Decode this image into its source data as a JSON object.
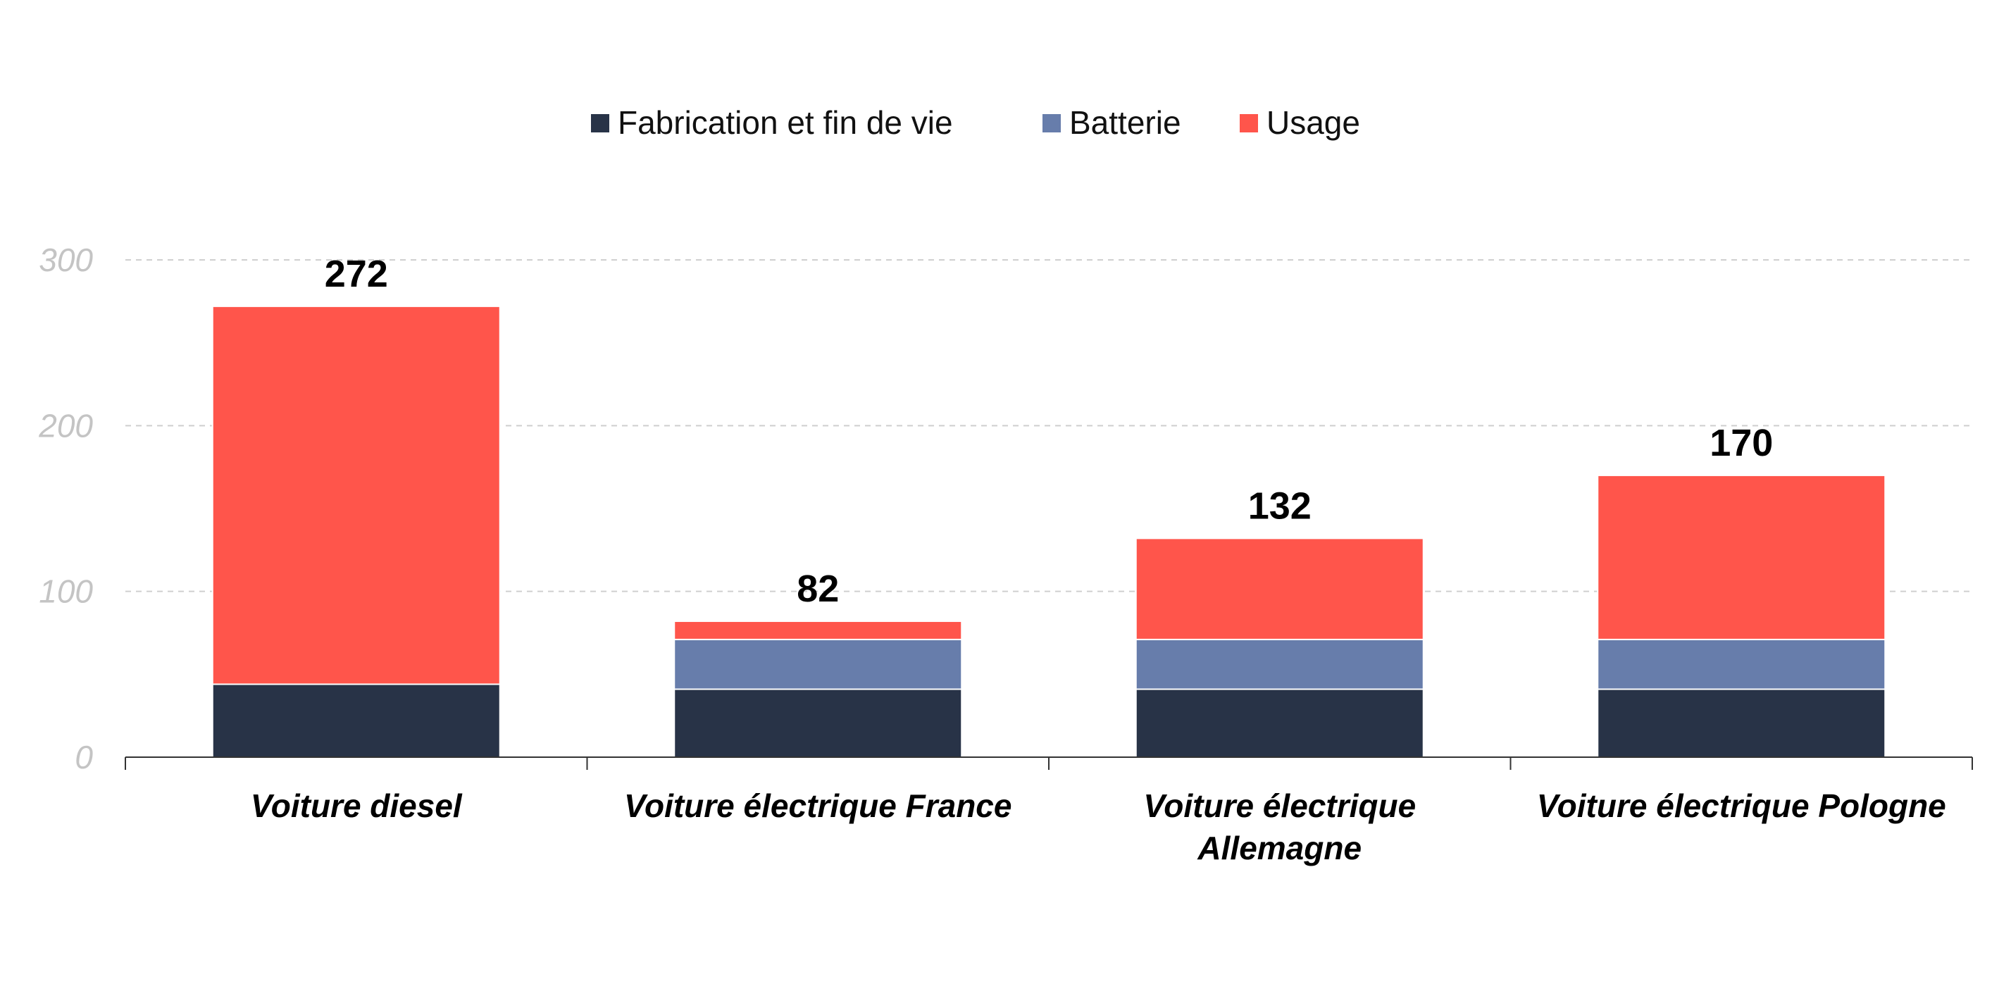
{
  "chart_data": {
    "type": "bar",
    "stacked": true,
    "categories": [
      [
        "Voiture diesel"
      ],
      [
        "Voiture électrique France"
      ],
      [
        "Voiture électrique",
        "Allemagne"
      ],
      [
        "Voiture électrique Pologne"
      ]
    ],
    "series": [
      {
        "name": "Fabrication et fin de vie",
        "color": "#283347",
        "values": [
          44,
          41,
          41,
          41
        ]
      },
      {
        "name": "Batterie",
        "color": "#677dab",
        "values": [
          0,
          30,
          30,
          30
        ]
      },
      {
        "name": "Usage",
        "color": "#ff554b",
        "values": [
          228,
          11,
          61,
          99
        ]
      }
    ],
    "totals": [
      "272",
      "82",
      "132",
      "170"
    ],
    "yticks": [
      "0",
      "100",
      "200",
      "300"
    ],
    "ylim": [
      0,
      300
    ],
    "grid": true,
    "legend_position": "top-center",
    "title": "",
    "xlabel": "",
    "ylabel": ""
  }
}
